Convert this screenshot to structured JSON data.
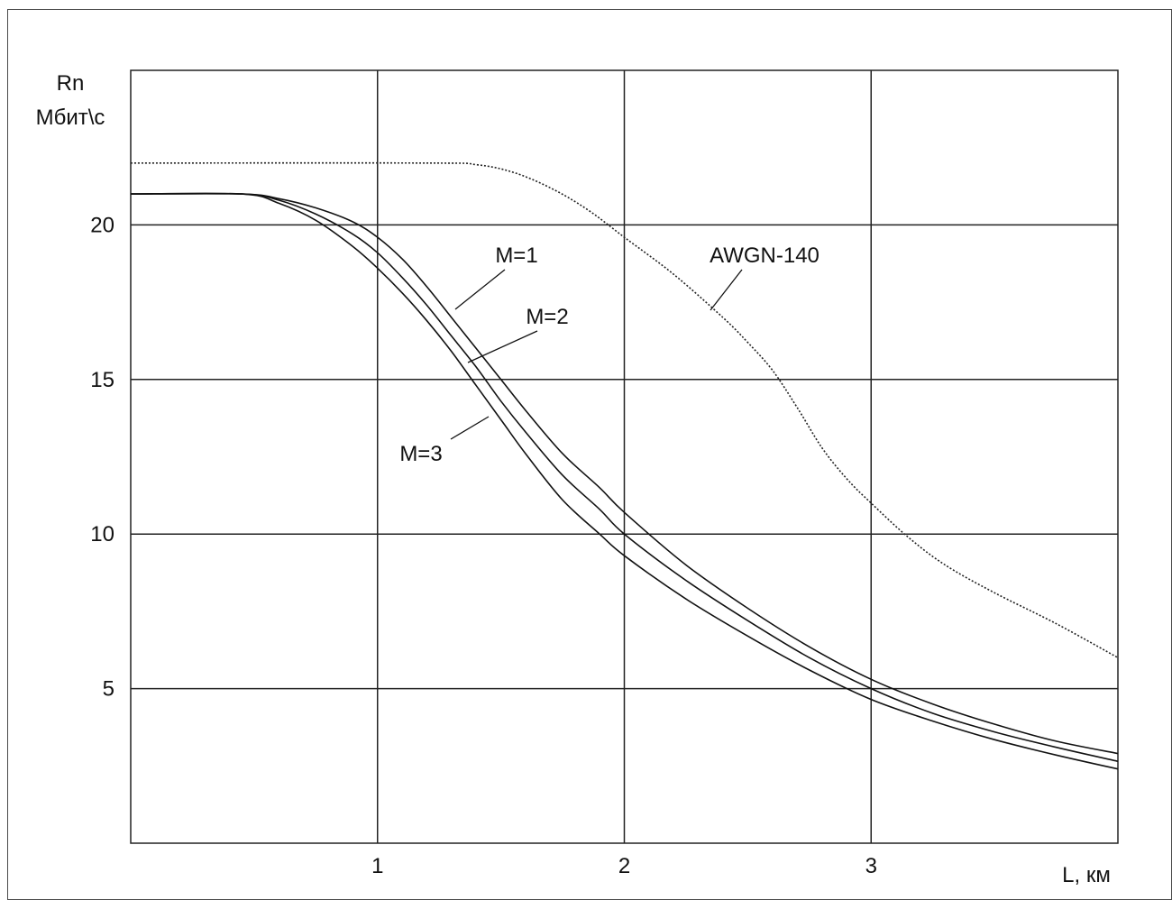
{
  "chart_data": {
    "type": "line",
    "title": "",
    "ylabel": "Rn",
    "ylabel_unit": "Мбит\\с",
    "xlabel": "L, км",
    "xlim": [
      0,
      4
    ],
    "ylim": [
      0,
      25
    ],
    "x_ticks": [
      1,
      2,
      3
    ],
    "x_tick_labels": [
      "1",
      "2",
      "3"
    ],
    "y_ticks": [
      5,
      10,
      15,
      20
    ],
    "y_tick_labels": [
      "5",
      "10",
      "15",
      "20"
    ],
    "grid": true,
    "series": [
      {
        "name": "M=1",
        "style": "solid",
        "color": "#111111",
        "points": [
          [
            0,
            21.0
          ],
          [
            0.45,
            21.0
          ],
          [
            0.6,
            20.85
          ],
          [
            0.75,
            20.55
          ],
          [
            0.9,
            20.1
          ],
          [
            1.0,
            19.6
          ],
          [
            1.1,
            18.9
          ],
          [
            1.2,
            18.0
          ],
          [
            1.3,
            17.0
          ],
          [
            1.4,
            16.0
          ],
          [
            1.5,
            15.0
          ],
          [
            1.6,
            14.0
          ],
          [
            1.75,
            12.6
          ],
          [
            1.9,
            11.5
          ],
          [
            2.0,
            10.7
          ],
          [
            2.25,
            9.0
          ],
          [
            2.5,
            7.6
          ],
          [
            2.75,
            6.35
          ],
          [
            3.0,
            5.3
          ],
          [
            3.25,
            4.5
          ],
          [
            3.5,
            3.85
          ],
          [
            3.75,
            3.3
          ],
          [
            4.0,
            2.9
          ]
        ]
      },
      {
        "name": "M=2",
        "style": "solid",
        "color": "#111111",
        "points": [
          [
            0,
            21.0
          ],
          [
            0.45,
            21.0
          ],
          [
            0.6,
            20.8
          ],
          [
            0.75,
            20.35
          ],
          [
            0.9,
            19.7
          ],
          [
            1.0,
            19.1
          ],
          [
            1.1,
            18.3
          ],
          [
            1.2,
            17.4
          ],
          [
            1.3,
            16.4
          ],
          [
            1.4,
            15.4
          ],
          [
            1.5,
            14.3
          ],
          [
            1.6,
            13.3
          ],
          [
            1.75,
            11.9
          ],
          [
            1.9,
            10.8
          ],
          [
            2.0,
            10.0
          ],
          [
            2.25,
            8.5
          ],
          [
            2.5,
            7.2
          ],
          [
            2.75,
            6.0
          ],
          [
            3.0,
            5.0
          ],
          [
            3.25,
            4.2
          ],
          [
            3.5,
            3.6
          ],
          [
            3.75,
            3.1
          ],
          [
            4.0,
            2.65
          ]
        ]
      },
      {
        "name": "M=3",
        "style": "solid",
        "color": "#111111",
        "points": [
          [
            0,
            21.0
          ],
          [
            0.45,
            21.0
          ],
          [
            0.6,
            20.7
          ],
          [
            0.75,
            20.15
          ],
          [
            0.9,
            19.3
          ],
          [
            1.0,
            18.6
          ],
          [
            1.1,
            17.8
          ],
          [
            1.2,
            16.9
          ],
          [
            1.3,
            15.9
          ],
          [
            1.4,
            14.8
          ],
          [
            1.5,
            13.7
          ],
          [
            1.6,
            12.6
          ],
          [
            1.75,
            11.1
          ],
          [
            1.9,
            10.0
          ],
          [
            2.0,
            9.3
          ],
          [
            2.25,
            7.9
          ],
          [
            2.5,
            6.7
          ],
          [
            2.75,
            5.6
          ],
          [
            3.0,
            4.65
          ],
          [
            3.25,
            3.95
          ],
          [
            3.5,
            3.35
          ],
          [
            3.75,
            2.85
          ],
          [
            4.0,
            2.4
          ]
        ]
      },
      {
        "name": "AWGN-140",
        "style": "dotted",
        "color": "#222222",
        "points": [
          [
            0,
            22.0
          ],
          [
            1.2,
            22.0
          ],
          [
            1.4,
            21.95
          ],
          [
            1.55,
            21.7
          ],
          [
            1.7,
            21.2
          ],
          [
            1.85,
            20.5
          ],
          [
            2.0,
            19.6
          ],
          [
            2.2,
            18.4
          ],
          [
            2.4,
            17.0
          ],
          [
            2.5,
            16.2
          ],
          [
            2.6,
            15.3
          ],
          [
            2.7,
            14.1
          ],
          [
            2.8,
            12.8
          ],
          [
            2.9,
            11.8
          ],
          [
            3.0,
            11.0
          ],
          [
            3.15,
            9.9
          ],
          [
            3.3,
            9.0
          ],
          [
            3.5,
            8.1
          ],
          [
            3.75,
            7.1
          ],
          [
            4.0,
            6.0
          ]
        ]
      }
    ],
    "annotations": [
      {
        "text": "M=1",
        "series": "M=1"
      },
      {
        "text": "M=2",
        "series": "M=2"
      },
      {
        "text": "M=3",
        "series": "M=3"
      },
      {
        "text": "AWGN-140",
        "series": "AWGN-140"
      }
    ]
  }
}
